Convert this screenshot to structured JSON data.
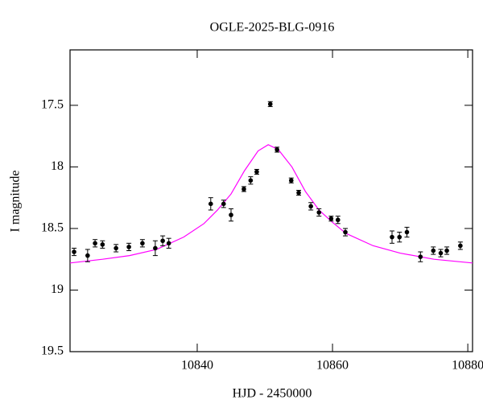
{
  "chart_data": {
    "type": "scatter",
    "title": "OGLE-2025-BLG-0916",
    "xlabel": "HJD - 2450000",
    "ylabel": "I magnitude",
    "x": [
      10821.8,
      10823.8,
      10824.9,
      10826.0,
      10828.0,
      10829.9,
      10831.9,
      10833.8,
      10834.9,
      10835.8,
      10842.0,
      10843.9,
      10845.0,
      10846.9,
      10847.9,
      10848.8,
      10850.8,
      10851.8,
      10853.9,
      10855.0,
      10856.8,
      10858.0,
      10859.8,
      10860.8,
      10861.9,
      10868.8,
      10869.9,
      10871.0,
      10873.0,
      10874.9,
      10876.0,
      10876.9,
      10878.9
    ],
    "values": [
      18.69,
      18.72,
      18.62,
      18.63,
      18.66,
      18.65,
      18.62,
      18.66,
      18.6,
      18.62,
      18.3,
      18.3,
      18.39,
      18.18,
      18.11,
      18.04,
      17.49,
      17.86,
      18.11,
      18.21,
      18.32,
      18.37,
      18.42,
      18.43,
      18.53,
      18.57,
      18.57,
      18.53,
      18.73,
      18.68,
      18.7,
      18.68,
      18.64
    ],
    "errors": [
      0.03,
      0.05,
      0.03,
      0.03,
      0.03,
      0.03,
      0.03,
      0.06,
      0.04,
      0.04,
      0.05,
      0.03,
      0.05,
      0.02,
      0.03,
      0.02,
      0.02,
      0.02,
      0.02,
      0.02,
      0.03,
      0.03,
      0.02,
      0.03,
      0.03,
      0.05,
      0.04,
      0.04,
      0.04,
      0.03,
      0.03,
      0.03,
      0.03
    ],
    "color": "#000000",
    "model": {
      "color": "#ff00ff",
      "x": [
        10821.2,
        10826,
        10830,
        10834,
        10838,
        10841,
        10843,
        10845,
        10847,
        10849,
        10850.5,
        10852,
        10854,
        10856,
        10858,
        10860,
        10862,
        10866,
        10870,
        10875,
        10880.7
      ],
      "values": [
        18.78,
        18.75,
        18.72,
        18.67,
        18.57,
        18.46,
        18.35,
        18.22,
        18.03,
        17.87,
        17.82,
        17.86,
        18.0,
        18.2,
        18.35,
        18.45,
        18.54,
        18.64,
        18.7,
        18.75,
        18.78
      ]
    },
    "xlim": [
      10821.2,
      10880.7
    ],
    "xticks": [
      10840,
      10860,
      10880
    ],
    "ylim": [
      19.5,
      17.05
    ],
    "yticks": [
      17.5,
      18,
      18.5,
      19,
      19.5
    ]
  }
}
